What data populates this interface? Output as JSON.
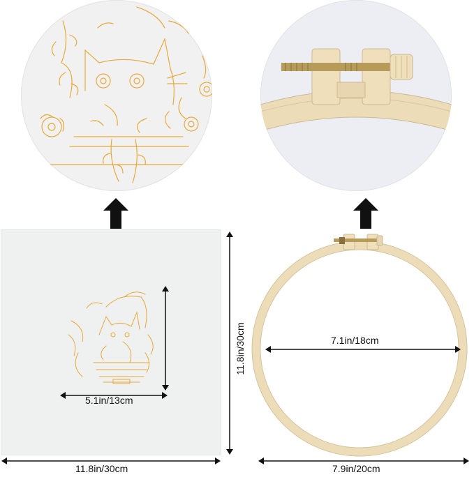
{
  "fabric": {
    "width_label": "11.8in/30cm",
    "height_label": "11.8in/30cm",
    "pattern_width_label": "5.1in/13cm"
  },
  "hoop": {
    "inner_label": "7.1in/18cm",
    "outer_label": "7.9in/20cm"
  },
  "colors": {
    "pattern_line": "#e8a93a",
    "hoop_wood": "#ecdcb8",
    "arrow": "#111111"
  }
}
